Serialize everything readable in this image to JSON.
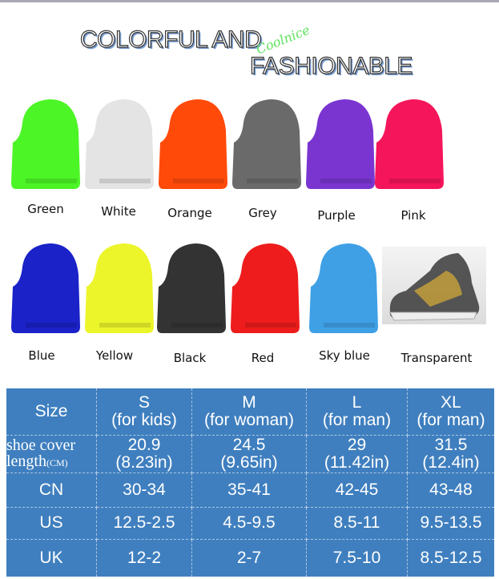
{
  "header": {
    "title_line1": "COLORFUL AND",
    "title_line2": "FASHIONABLE",
    "brand": "Coolnice"
  },
  "colors": [
    {
      "name": "Green",
      "hex": "#4cf526"
    },
    {
      "name": "White",
      "hex": "#e4e4e4"
    },
    {
      "name": "Orange",
      "hex": "#ff4a0a"
    },
    {
      "name": "Grey",
      "hex": "#6a6a6a"
    },
    {
      "name": "Purple",
      "hex": "#7a35d0"
    },
    {
      "name": "Pink",
      "hex": "#f5155a"
    },
    {
      "name": "Blue",
      "hex": "#1a22c8"
    },
    {
      "name": "Yellow",
      "hex": "#ecf52a"
    },
    {
      "name": "Black",
      "hex": "#333333"
    },
    {
      "name": "Red",
      "hex": "#ee1c1c"
    },
    {
      "name": "Sky blue",
      "hex": "#3fa0e6"
    },
    {
      "name": "Transparent",
      "hex": "#d8d8d8"
    }
  ],
  "table": {
    "header": [
      "Size",
      {
        "size": "S",
        "note": "(for kids)"
      },
      {
        "size": "M",
        "note": "(for woman)"
      },
      {
        "size": "L",
        "note": "(for man)"
      },
      {
        "size": "XL",
        "note": "(for man)"
      }
    ],
    "length_label": "shoe cover",
    "length_label2": "length",
    "length_unit": "(CM)",
    "length": [
      [
        "20.9",
        "(8.23in)"
      ],
      [
        "24.5",
        "(9.65in)"
      ],
      [
        "29",
        "(11.42in)"
      ],
      [
        "31.5",
        "(12.4in)"
      ]
    ],
    "rows": [
      {
        "label": "CN",
        "values": [
          "30-34",
          "35-41",
          "42-45",
          "43-48"
        ]
      },
      {
        "label": "US",
        "values": [
          "12.5-2.5",
          "4.5-9.5",
          "8.5-11",
          "9.5-13.5"
        ]
      },
      {
        "label": "UK",
        "values": [
          "12-2",
          "2-7",
          "7.5-10",
          "8.5-12.5"
        ]
      }
    ]
  }
}
